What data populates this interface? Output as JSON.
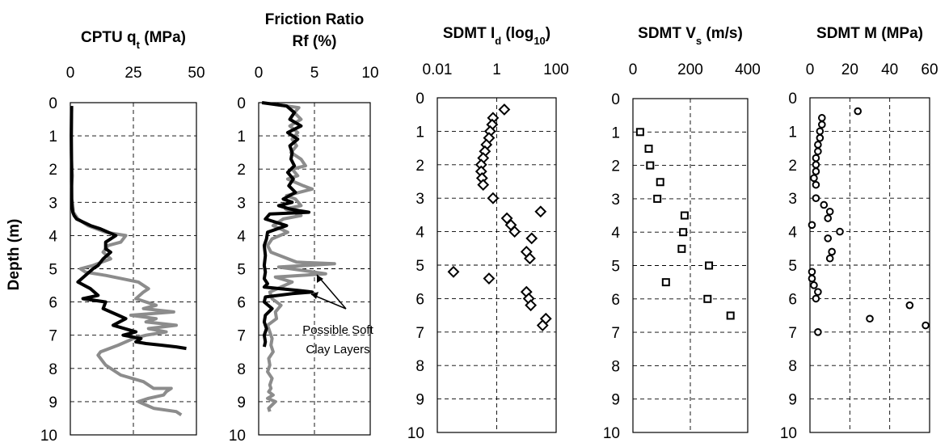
{
  "ylabel": "Depth (m)",
  "chart_data": [
    {
      "id": "cptu",
      "type": "line",
      "title": "CPTU q",
      "title_sub": "t",
      "title_end": " (MPa)",
      "xlim": [
        0,
        50
      ],
      "xticks": [
        0,
        25,
        50
      ],
      "ylim": [
        0,
        10
      ],
      "yticks": [
        0,
        1,
        2,
        3,
        4,
        5,
        6,
        7,
        8,
        9,
        10
      ],
      "grid": true,
      "series": [
        {
          "color": "#8c8c8c",
          "x": [
            0.5,
            0.4,
            0.4,
            0.6,
            0.8,
            0.5,
            0.6,
            1.0,
            1.2,
            3.0,
            7.0,
            14.0,
            22.0,
            20.0,
            15.0,
            13.0,
            16.0,
            9.0,
            4.0,
            6.0,
            14.0,
            27.0,
            31.0,
            29.0,
            26.0,
            34.0,
            29.0,
            41.0,
            24.0,
            34.0,
            30.0,
            42.0,
            31.0,
            38.0,
            30.0,
            25.0,
            19.0,
            12.0,
            11.0,
            14.0,
            20.0,
            29.0,
            33.0,
            40.0,
            38.0,
            37.0,
            31.0,
            27.0,
            30.0,
            33.0,
            42.0,
            44.0
          ],
          "y": [
            0.1,
            1.0,
            1.5,
            2.0,
            2.2,
            2.5,
            2.9,
            3.1,
            3.3,
            3.5,
            3.7,
            3.9,
            4.0,
            4.2,
            4.3,
            4.5,
            4.7,
            4.9,
            5.0,
            5.1,
            5.2,
            5.4,
            5.6,
            5.7,
            5.9,
            6.1,
            6.2,
            6.3,
            6.4,
            6.5,
            6.6,
            6.7,
            6.8,
            6.9,
            7.0,
            7.1,
            7.3,
            7.5,
            7.6,
            7.9,
            8.2,
            8.4,
            8.6,
            8.6,
            8.7,
            8.8,
            8.9,
            9.0,
            9.1,
            9.2,
            9.3,
            9.4
          ]
        },
        {
          "color": "#000000",
          "x": [
            0.5,
            0.4,
            0.5,
            0.5,
            0.5,
            0.6,
            1.0,
            1.5,
            2.5,
            8.0,
            12.0,
            18.0,
            14.0,
            14.0,
            16.0,
            13.0,
            11.0,
            9.0,
            3.0,
            8.0,
            11.0,
            5.0,
            14.0,
            13.0,
            19.0,
            22.0,
            17.0,
            26.0,
            21.0,
            28.0,
            26.0,
            30.0,
            36.0,
            42.0,
            46.0
          ],
          "y": [
            0.1,
            1.0,
            2.0,
            2.6,
            2.9,
            3.1,
            3.3,
            3.4,
            3.5,
            3.7,
            3.8,
            4.0,
            4.2,
            4.4,
            4.5,
            4.7,
            4.9,
            5.0,
            5.4,
            5.6,
            5.8,
            5.9,
            6.0,
            6.2,
            6.4,
            6.5,
            6.7,
            6.9,
            7.0,
            7.1,
            7.2,
            7.25,
            7.3,
            7.35,
            7.4
          ]
        }
      ]
    },
    {
      "id": "rf",
      "type": "line",
      "title_line1": "Friction Ratio",
      "title_line2": "Rf (%)",
      "xlim": [
        0,
        10
      ],
      "xticks": [
        0,
        5,
        10
      ],
      "ylim": [
        0,
        10
      ],
      "yticks": [
        0,
        1,
        2,
        3,
        4,
        5,
        6,
        7,
        8,
        9,
        10
      ],
      "grid": true,
      "annotation": {
        "line1": "Possible Soft",
        "line2": "Clay Layers"
      },
      "series": [
        {
          "color": "#8c8c8c",
          "x": [
            1.5,
            3.6,
            3.2,
            3.8,
            2.8,
            3.5,
            3.0,
            3.4,
            2.9,
            3.8,
            4.2,
            3.0,
            3.5,
            2.6,
            4.0,
            4.8,
            2.5,
            3.3,
            3.8,
            2.4,
            3.8,
            2.2,
            1.3,
            2.6,
            1.2,
            0.8,
            1.1,
            3.4,
            6.8,
            1.8,
            4.0,
            6.0,
            1.5,
            3.0,
            2.0,
            1.0,
            1.2,
            2.0,
            1.5,
            1.6,
            0.8,
            1.0,
            1.2,
            1.1,
            1.3,
            0.9,
            1.0,
            0.8,
            1.2,
            1.0,
            1.1,
            0.9,
            1.3,
            0.8,
            1.5,
            0.9,
            1.0
          ],
          "y": [
            0.05,
            0.15,
            0.3,
            0.5,
            0.7,
            0.9,
            1.1,
            1.3,
            1.5,
            1.7,
            1.9,
            2.0,
            2.2,
            2.3,
            2.5,
            2.6,
            2.8,
            2.9,
            3.1,
            3.2,
            3.4,
            3.5,
            3.7,
            3.9,
            4.1,
            4.3,
            4.5,
            4.8,
            4.85,
            4.95,
            5.05,
            5.15,
            5.25,
            5.4,
            5.55,
            5.7,
            5.9,
            6.1,
            6.3,
            6.5,
            6.7,
            6.9,
            7.1,
            7.3,
            7.5,
            7.7,
            7.9,
            8.1,
            8.3,
            8.5,
            8.6,
            8.7,
            8.8,
            8.9,
            9.0,
            9.2,
            9.3
          ]
        },
        {
          "color": "#000000",
          "x": [
            0.3,
            2.5,
            3.2,
            2.8,
            3.8,
            2.6,
            3.5,
            2.8,
            3.0,
            2.9,
            3.2,
            2.6,
            3.1,
            2.7,
            3.3,
            2.2,
            3.0,
            1.8,
            2.8,
            3.6,
            4.5,
            1.0,
            0.6,
            2.5,
            0.8,
            0.7,
            0.5,
            0.6,
            0.5,
            0.6,
            0.5,
            0.8,
            0.5,
            2.0,
            3.5,
            4.8,
            3.0,
            0.6,
            0.5,
            1.2,
            0.6,
            0.5,
            0.7,
            0.5,
            0.6,
            0.5
          ],
          "y": [
            0.0,
            0.1,
            0.3,
            0.5,
            0.7,
            0.9,
            1.1,
            1.3,
            1.5,
            1.7,
            1.9,
            2.1,
            2.3,
            2.5,
            2.7,
            2.9,
            3.0,
            3.1,
            3.2,
            3.25,
            3.3,
            3.35,
            3.5,
            3.7,
            3.9,
            4.1,
            4.3,
            4.6,
            4.9,
            5.1,
            5.3,
            5.45,
            5.55,
            5.6,
            5.65,
            5.7,
            5.75,
            5.85,
            6.0,
            6.2,
            6.4,
            6.6,
            6.8,
            7.0,
            7.2,
            7.35
          ]
        }
      ]
    },
    {
      "id": "id",
      "type": "scatter",
      "marker": "diamond",
      "title": "SDMT I",
      "title_sub": "d",
      "title_end": " (log",
      "title_sub2": "10",
      "title_close": ")",
      "xscale": "log",
      "xlim": [
        0.01,
        100
      ],
      "xticks": [
        0.01,
        1,
        100
      ],
      "xtick_labels": [
        "0.01",
        "1",
        "100"
      ],
      "ylim": [
        0,
        10
      ],
      "yticks": [
        0,
        1,
        2,
        3,
        4,
        5,
        6,
        7,
        8,
        9,
        10
      ],
      "grid": true,
      "x": [
        1.8,
        0.75,
        0.7,
        0.6,
        0.55,
        0.45,
        0.4,
        0.35,
        0.3,
        0.3,
        0.32,
        0.35,
        0.75,
        30.0,
        2.2,
        3.0,
        4.0,
        15.0,
        10.0,
        13.0,
        0.035,
        0.55,
        10.0,
        12.0,
        14.0,
        45.0,
        35.0
      ],
      "y": [
        0.35,
        0.6,
        0.8,
        1.0,
        1.2,
        1.4,
        1.6,
        1.8,
        2.0,
        2.2,
        2.4,
        2.6,
        3.0,
        3.4,
        3.6,
        3.8,
        4.0,
        4.2,
        4.6,
        4.8,
        5.2,
        5.4,
        5.8,
        6.0,
        6.2,
        6.6,
        6.8
      ]
    },
    {
      "id": "vs",
      "type": "scatter",
      "marker": "square",
      "title": "SDMT V",
      "title_sub": "s",
      "title_end": " (m/s)",
      "xlim": [
        0,
        400
      ],
      "xticks": [
        0,
        200,
        400
      ],
      "ylim": [
        0,
        10
      ],
      "yticks": [
        0,
        1,
        2,
        3,
        4,
        5,
        6,
        7,
        8,
        9,
        10
      ],
      "grid": true,
      "x": [
        25,
        55,
        60,
        95,
        85,
        180,
        175,
        170,
        265,
        115,
        260,
        340
      ],
      "y": [
        1.0,
        1.5,
        2.0,
        2.5,
        3.0,
        3.5,
        4.0,
        4.5,
        5.0,
        5.5,
        6.0,
        6.5
      ]
    },
    {
      "id": "m",
      "type": "scatter",
      "marker": "circle",
      "title": "SDMT M (MPa)",
      "xlim": [
        0,
        60
      ],
      "xticks": [
        0,
        20,
        40,
        60
      ],
      "ylim": [
        0,
        10
      ],
      "yticks": [
        0,
        1,
        2,
        3,
        4,
        5,
        6,
        7,
        8,
        9,
        10
      ],
      "grid": true,
      "x": [
        24,
        6,
        6,
        5,
        5,
        4,
        4,
        3,
        3,
        3,
        2,
        3,
        3,
        7,
        10,
        9,
        1,
        15,
        9,
        11,
        10,
        1,
        1,
        2,
        4,
        3,
        50,
        30,
        58,
        4
      ],
      "y": [
        0.4,
        0.6,
        0.8,
        1.0,
        1.2,
        1.4,
        1.6,
        1.8,
        2.0,
        2.2,
        2.4,
        2.6,
        3.0,
        3.2,
        3.4,
        3.6,
        3.8,
        4.0,
        4.2,
        4.6,
        4.8,
        5.2,
        5.4,
        5.6,
        5.8,
        6.0,
        6.2,
        6.6,
        6.8,
        7.0
      ]
    }
  ]
}
